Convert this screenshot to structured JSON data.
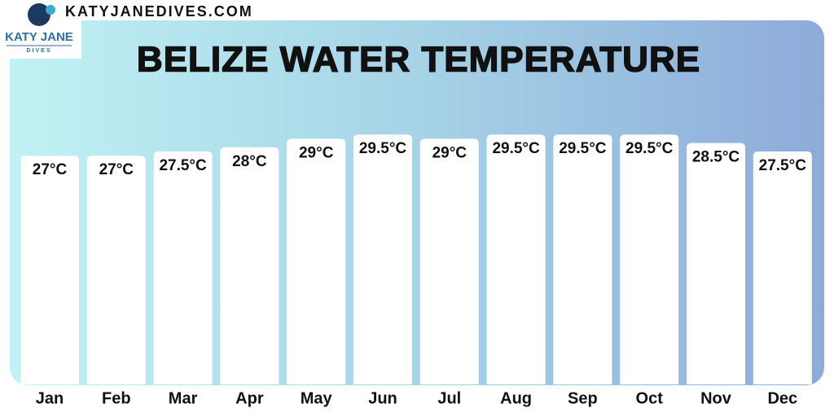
{
  "header": {
    "site": "KATYJANEDIVES.COM",
    "logo": "KATY JANE",
    "logo_sub": "DIVES"
  },
  "chart_data": {
    "type": "bar",
    "title": "BELIZE WATER TEMPERATURE",
    "categories": [
      "Jan",
      "Feb",
      "Mar",
      "Apr",
      "May",
      "Jun",
      "Jul",
      "Aug",
      "Sep",
      "Oct",
      "Nov",
      "Dec"
    ],
    "values": [
      27,
      27,
      27.5,
      28,
      29,
      29.5,
      29,
      29.5,
      29.5,
      29.5,
      28.5,
      27.5
    ],
    "value_labels": [
      "27°C",
      "27°C",
      "27.5°C",
      "28°C",
      "29°C",
      "29.5°C",
      "29°C",
      "29.5°C",
      "29.5°C",
      "29.5°C",
      "28.5°C",
      "27.5°C"
    ],
    "color": "#ffffff"
  }
}
